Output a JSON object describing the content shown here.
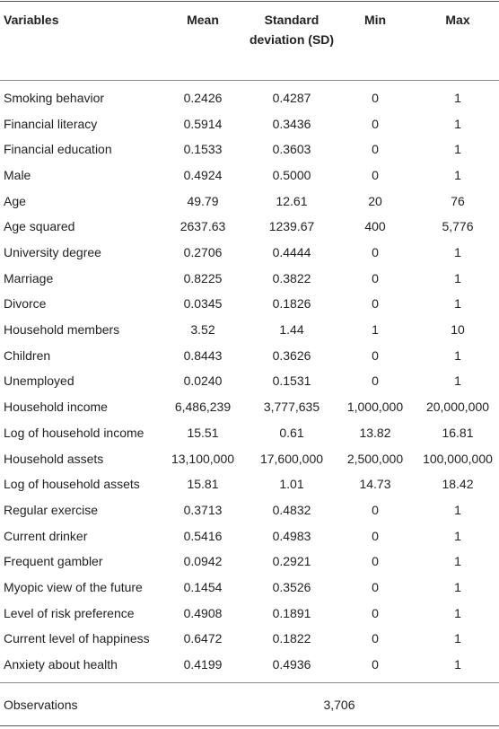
{
  "table": {
    "columns": [
      "Variables",
      "Mean",
      "Standard deviation (SD)",
      "Min",
      "Max"
    ],
    "rows": [
      [
        "Smoking behavior",
        "0.2426",
        "0.4287",
        "0",
        "1"
      ],
      [
        "Financial literacy",
        "0.5914",
        "0.3436",
        "0",
        "1"
      ],
      [
        "Financial education",
        "0.1533",
        "0.3603",
        "0",
        "1"
      ],
      [
        "Male",
        "0.4924",
        "0.5000",
        "0",
        "1"
      ],
      [
        "Age",
        "49.79",
        "12.61",
        "20",
        "76"
      ],
      [
        "Age squared",
        "2637.63",
        "1239.67",
        "400",
        "5,776"
      ],
      [
        "University degree",
        "0.2706",
        "0.4444",
        "0",
        "1"
      ],
      [
        "Marriage",
        "0.8225",
        "0.3822",
        "0",
        "1"
      ],
      [
        "Divorce",
        "0.0345",
        "0.1826",
        "0",
        "1"
      ],
      [
        "Household members",
        "3.52",
        "1.44",
        "1",
        "10"
      ],
      [
        "Children",
        "0.8443",
        "0.3626",
        "0",
        "1"
      ],
      [
        "Unemployed",
        "0.0240",
        "0.1531",
        "0",
        "1"
      ],
      [
        "Household income",
        "6,486,239",
        "3,777,635",
        "1,000,000",
        "20,000,000"
      ],
      [
        "Log of household income",
        "15.51",
        "0.61",
        "13.82",
        "16.81"
      ],
      [
        "Household assets",
        "13,100,000",
        "17,600,000",
        "2,500,000",
        "100,000,000"
      ],
      [
        "Log of household assets",
        "15.81",
        "1.01",
        "14.73",
        "18.42"
      ],
      [
        "Regular exercise",
        "0.3713",
        "0.4832",
        "0",
        "1"
      ],
      [
        "Current drinker",
        "0.5416",
        "0.4983",
        "0",
        "1"
      ],
      [
        "Frequent gambler",
        "0.0942",
        "0.2921",
        "0",
        "1"
      ],
      [
        "Myopic view of the future",
        "0.1454",
        "0.3526",
        "0",
        "1"
      ],
      [
        "Level of risk preference",
        "0.4908",
        "0.1891",
        "0",
        "1"
      ],
      [
        "Current level of happiness",
        "0.6472",
        "0.1822",
        "0",
        "1"
      ],
      [
        "Anxiety about health",
        "0.4199",
        "0.4936",
        "0",
        "1"
      ]
    ],
    "footer": {
      "label": "Observations",
      "value": "3,706"
    }
  }
}
